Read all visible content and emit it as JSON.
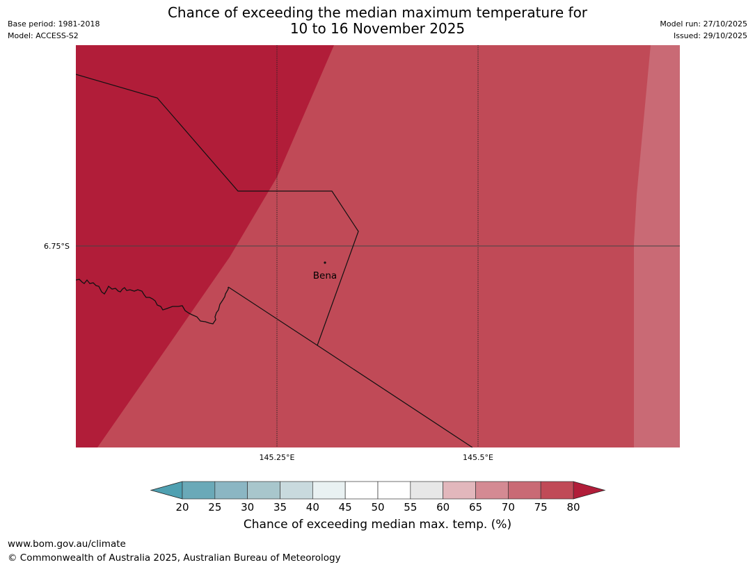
{
  "header": {
    "title_line1": "Chance of exceeding the median maximum temperature for",
    "title_line2": "10 to 16 November 2025",
    "base_period": "Base period: 1981-2018",
    "model": "Model: ACCESS-S2",
    "model_run": "Model run: 27/10/2025",
    "issued": "Issued: 29/10/2025"
  },
  "map": {
    "lat_label": "6.75°S",
    "lon_labels": [
      "145.25°E",
      "145.5°E"
    ],
    "place": "Bena",
    "zone_colors": {
      "c80": "#b11d39",
      "c75": "#c04a57",
      "c70": "#c96a75"
    }
  },
  "colorbar": {
    "ticks": [
      "20",
      "25",
      "30",
      "35",
      "40",
      "45",
      "50",
      "55",
      "60",
      "65",
      "70",
      "75",
      "80"
    ],
    "colors": [
      "#6aa9b8",
      "#8bb6c3",
      "#a8c6cc",
      "#c9dade",
      "#e9f1f2",
      "#ffffff",
      "#ffffff",
      "#e7e7e7",
      "#e2b7bc",
      "#d48a93",
      "#c96a75",
      "#c04a57"
    ],
    "under_color": "#4fa0b1",
    "over_color": "#b11d39",
    "label": "Chance of exceeding median max. temp. (%)"
  },
  "footer": {
    "url": "www.bom.gov.au/climate",
    "copyright": "© Commonwealth of Australia 2025, Australian Bureau of Meteorology"
  }
}
